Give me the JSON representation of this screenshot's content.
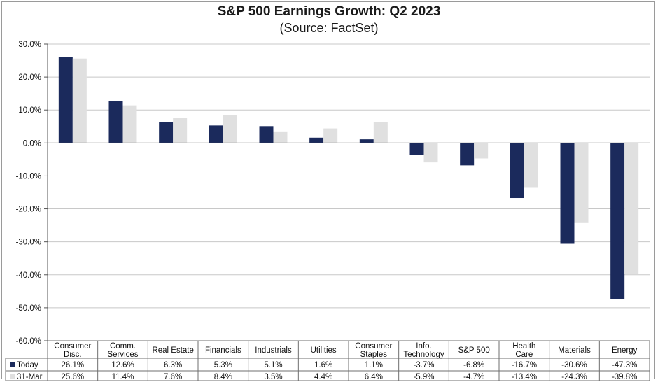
{
  "title": "S&P 500 Earnings Growth: Q2 2023",
  "subtitle": "(Source: FactSet)",
  "colors": {
    "today": "#1b2a5c",
    "march": "#e0e0e0",
    "grid": "#c8c8c8",
    "axis": "#555555"
  },
  "chart_data": {
    "type": "bar",
    "title": "S&P 500 Earnings Growth: Q2 2023",
    "subtitle": "(Source: FactSet)",
    "categories": [
      [
        "Consumer",
        "Disc."
      ],
      [
        "Comm.",
        "Services"
      ],
      [
        "Real Estate"
      ],
      [
        "Financials"
      ],
      [
        "Industrials"
      ],
      [
        "Utilities"
      ],
      [
        "Consumer",
        "Staples"
      ],
      [
        "Info.",
        "Technology"
      ],
      [
        "S&P 500"
      ],
      [
        "Health",
        "Care"
      ],
      [
        "Materials"
      ],
      [
        "Energy"
      ]
    ],
    "series": [
      {
        "name": "Today",
        "values": [
          26.1,
          12.6,
          6.3,
          5.3,
          5.1,
          1.6,
          1.1,
          -3.7,
          -6.8,
          -16.7,
          -30.6,
          -47.3
        ],
        "labels": [
          "26.1%",
          "12.6%",
          "6.3%",
          "5.3%",
          "5.1%",
          "1.6%",
          "1.1%",
          "-3.7%",
          "-6.8%",
          "-16.7%",
          "-30.6%",
          "-47.3%"
        ]
      },
      {
        "name": "31-Mar",
        "values": [
          25.6,
          11.4,
          7.6,
          8.4,
          3.5,
          4.4,
          6.4,
          -5.9,
          -4.7,
          -13.4,
          -24.3,
          -39.8
        ],
        "labels": [
          "25.6%",
          "11.4%",
          "7.6%",
          "8.4%",
          "3.5%",
          "4.4%",
          "6.4%",
          "-5.9%",
          "-4.7%",
          "-13.4%",
          "-24.3%",
          "-39.8%"
        ]
      }
    ],
    "yticks": [
      30,
      20,
      10,
      0,
      -10,
      -20,
      -30,
      -40,
      -50,
      -60
    ],
    "ytick_labels": [
      "30.0%",
      "20.0%",
      "10.0%",
      "0.0%",
      "-10.0%",
      "-20.0%",
      "-30.0%",
      "-40.0%",
      "-50.0%",
      "-60.0%"
    ],
    "ylim": [
      -60,
      30
    ],
    "grid": true,
    "legend": "data-table-left"
  }
}
